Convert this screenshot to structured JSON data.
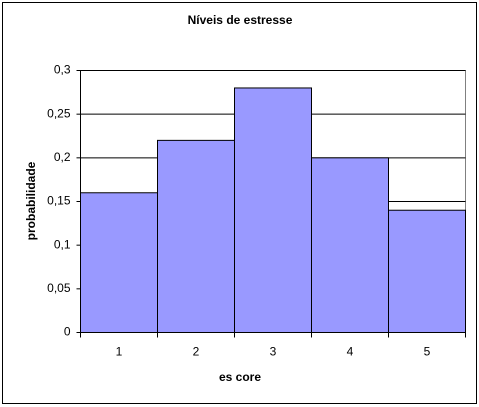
{
  "chart_data": {
    "type": "bar",
    "title": "Níveis de estresse",
    "x_label": "es core",
    "y_label": "probabilidade",
    "categories": [
      "1",
      "2",
      "3",
      "4",
      "5"
    ],
    "values": [
      0.16,
      0.22,
      0.28,
      0.2,
      0.14
    ],
    "color": "#9999ff",
    "ylim": [
      0,
      0.3
    ],
    "yticks": [
      0,
      {
        "value": 0.05,
        "label": "0,05"
      },
      {
        "value": 0.1,
        "label": "0,1"
      },
      {
        "value": 0.15,
        "label": "0,15"
      },
      {
        "value": 0.2,
        "label": "0,2"
      },
      {
        "value": 0.25,
        "label": "0,25"
      },
      {
        "value": 0.3,
        "label": "0,3"
      }
    ],
    "grid": true
  }
}
